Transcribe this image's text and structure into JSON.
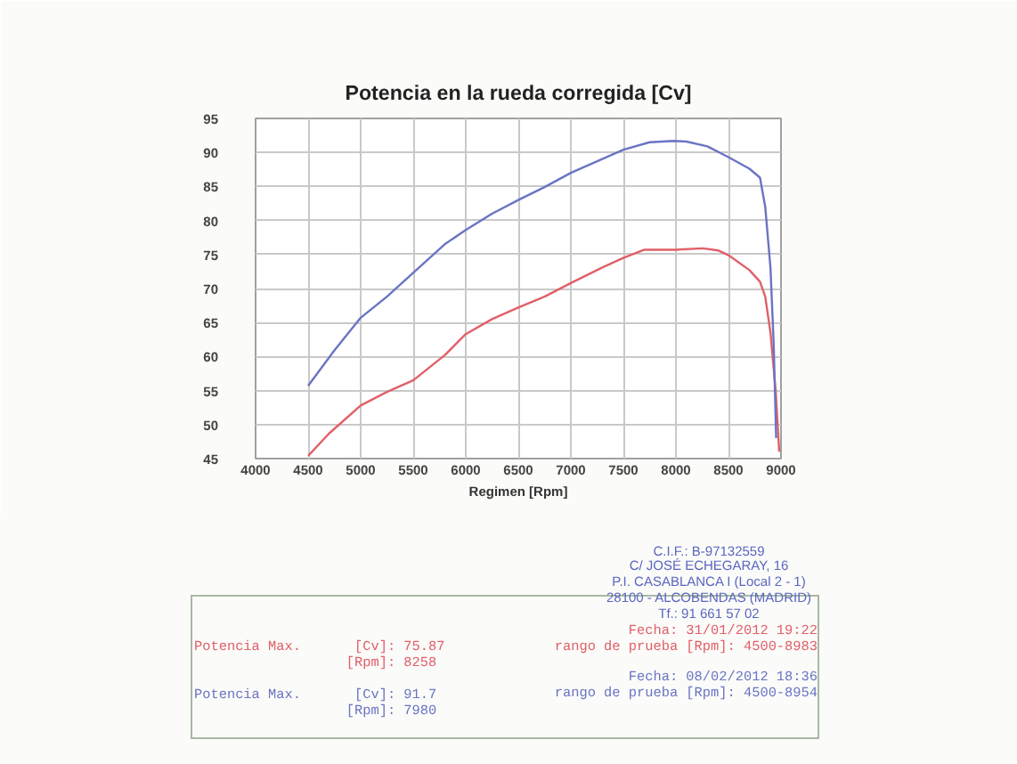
{
  "chart_data": {
    "type": "line",
    "title": "Potencia en la rueda corregida [Cv]",
    "xlabel": "Regimen [Rpm]",
    "xlim": [
      4000,
      9000
    ],
    "ylim": [
      45,
      95
    ],
    "xticks": [
      4000,
      4500,
      5000,
      5500,
      6000,
      6500,
      7000,
      7500,
      8000,
      8500,
      9000
    ],
    "yticks": [
      45,
      50,
      55,
      60,
      65,
      70,
      75,
      80,
      85,
      90,
      95
    ],
    "grid": true,
    "line_style": "solid",
    "series": [
      {
        "color": "#e06068",
        "x": [
          4500,
          4700,
          5000,
          5250,
          5500,
          5800,
          6000,
          6250,
          6500,
          6750,
          7000,
          7300,
          7500,
          7700,
          8000,
          8258,
          8400,
          8500,
          8700,
          8800,
          8850,
          8900,
          8950,
          8983
        ],
        "values": [
          45.4,
          48.7,
          52.8,
          54.8,
          56.5,
          60.2,
          63.3,
          65.5,
          67.2,
          68.8,
          70.8,
          73.1,
          74.5,
          75.7,
          75.7,
          75.9,
          75.6,
          74.9,
          72.7,
          71.0,
          68.8,
          63.5,
          54.8,
          46.0
        ]
      },
      {
        "color": "#6a74c4",
        "x": [
          4500,
          4750,
          5000,
          5250,
          5500,
          5800,
          6000,
          6250,
          6500,
          6750,
          7000,
          7250,
          7500,
          7750,
          7980,
          8100,
          8300,
          8500,
          8700,
          8800,
          8850,
          8900,
          8930,
          8954
        ],
        "values": [
          55.7,
          60.9,
          65.7,
          68.8,
          72.3,
          76.5,
          78.6,
          81.0,
          83.0,
          84.9,
          87.0,
          88.7,
          90.4,
          91.5,
          91.7,
          91.6,
          90.9,
          89.3,
          87.6,
          86.3,
          82.0,
          73.0,
          62.0,
          48.0
        ]
      }
    ],
    "annotations": [
      "Potencia Max.",
      "[Cv]: 75.87",
      "[Rpm]: 8258",
      "Fecha: 31/01/2012 19:22",
      "rango de prueba [Rpm]: 4500-8983",
      "Potencia Max.",
      "[Cv]: 91.7",
      "[Rpm]: 7980",
      "Fecha: 08/02/2012 18:36",
      "rango de prueba [Rpm]: 4500-8954",
      "C.I.F.: B-97132559",
      "C/ JOSÉ ECHEGARAY, 16",
      "P.I. CASABLANCA I (Local 2 - 1)",
      "28100 - ALCOBENDAS (MADRID)",
      "Tf.: 91 661 57 02"
    ]
  }
}
